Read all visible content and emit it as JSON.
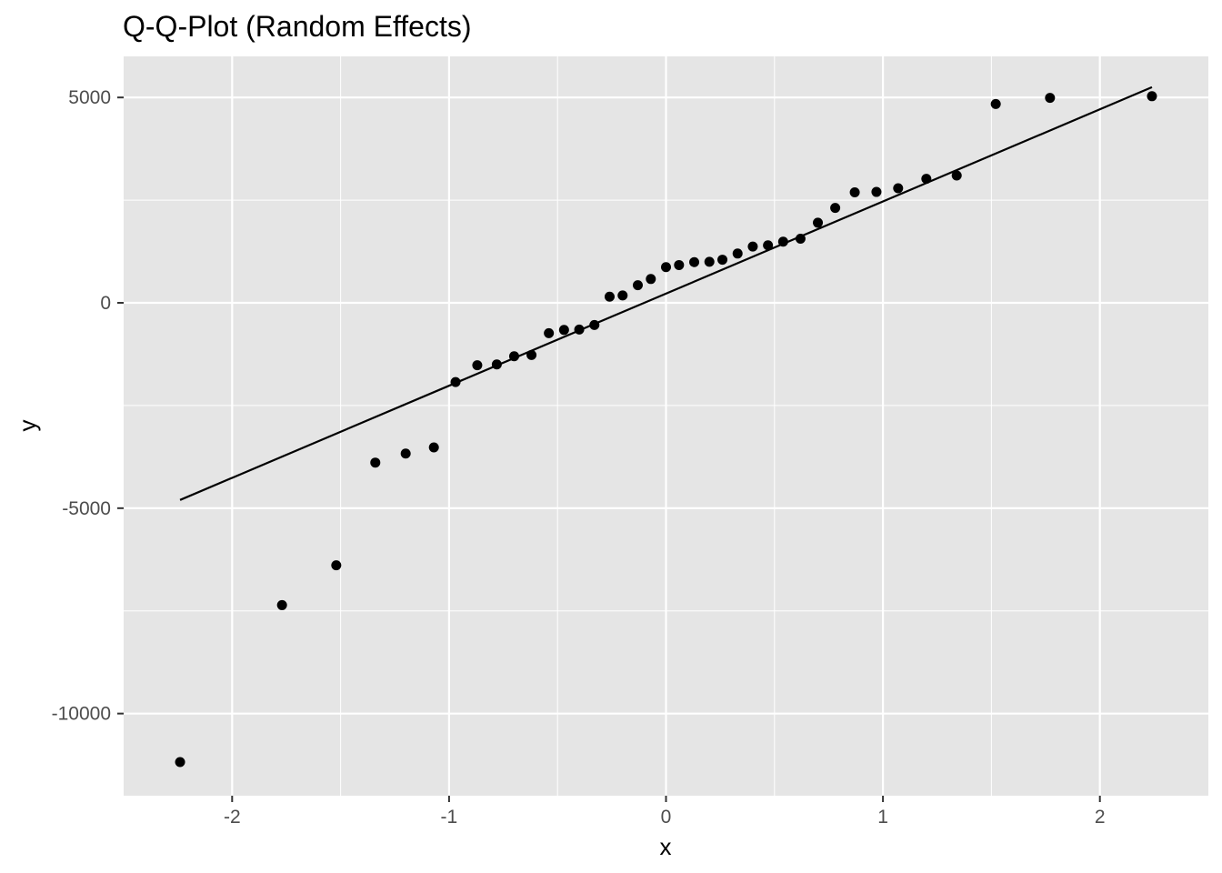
{
  "chart_data": {
    "type": "scatter",
    "title": "Q-Q-Plot (Random Effects)",
    "xlabel": "x",
    "ylabel": "y",
    "xlim": [
      -2.5,
      2.5
    ],
    "ylim": [
      -12000,
      6000
    ],
    "x_ticks": [
      -2,
      -1,
      0,
      1,
      2
    ],
    "x_tick_labels": [
      "-2",
      "-1",
      "0",
      "1",
      "2"
    ],
    "y_ticks": [
      -10000,
      -5000,
      0,
      5000
    ],
    "y_tick_labels": [
      "-10000",
      "-5000",
      "0",
      "5000"
    ],
    "grid": true,
    "legend": "none",
    "colors": {
      "panel": "#e5e5e5",
      "grid": "#ffffff",
      "points": "#000000",
      "line": "#000000"
    },
    "points": [
      {
        "x": -2.24,
        "y": -11180
      },
      {
        "x": -1.77,
        "y": -7360
      },
      {
        "x": -1.52,
        "y": -6390
      },
      {
        "x": -1.34,
        "y": -3890
      },
      {
        "x": -1.2,
        "y": -3670
      },
      {
        "x": -1.07,
        "y": -3520
      },
      {
        "x": -0.97,
        "y": -1930
      },
      {
        "x": -0.87,
        "y": -1520
      },
      {
        "x": -0.78,
        "y": -1500
      },
      {
        "x": -0.7,
        "y": -1300
      },
      {
        "x": -0.62,
        "y": -1270
      },
      {
        "x": -0.54,
        "y": -740
      },
      {
        "x": -0.47,
        "y": -660
      },
      {
        "x": -0.4,
        "y": -650
      },
      {
        "x": -0.33,
        "y": -540
      },
      {
        "x": -0.26,
        "y": 150
      },
      {
        "x": -0.2,
        "y": 180
      },
      {
        "x": -0.13,
        "y": 430
      },
      {
        "x": -0.07,
        "y": 580
      },
      {
        "x": 0.0,
        "y": 870
      },
      {
        "x": 0.06,
        "y": 920
      },
      {
        "x": 0.13,
        "y": 990
      },
      {
        "x": 0.2,
        "y": 1000
      },
      {
        "x": 0.26,
        "y": 1050
      },
      {
        "x": 0.33,
        "y": 1200
      },
      {
        "x": 0.4,
        "y": 1370
      },
      {
        "x": 0.47,
        "y": 1400
      },
      {
        "x": 0.54,
        "y": 1490
      },
      {
        "x": 0.62,
        "y": 1560
      },
      {
        "x": 0.7,
        "y": 1950
      },
      {
        "x": 0.78,
        "y": 2310
      },
      {
        "x": 0.87,
        "y": 2690
      },
      {
        "x": 0.97,
        "y": 2700
      },
      {
        "x": 1.07,
        "y": 2790
      },
      {
        "x": 1.2,
        "y": 3020
      },
      {
        "x": 1.34,
        "y": 3100
      },
      {
        "x": 1.52,
        "y": 4840
      },
      {
        "x": 1.77,
        "y": 4990
      },
      {
        "x": 2.24,
        "y": 5030
      }
    ],
    "reference_line": {
      "x": [
        -2.24,
        2.24
      ],
      "y": [
        -4800,
        5250
      ]
    }
  }
}
